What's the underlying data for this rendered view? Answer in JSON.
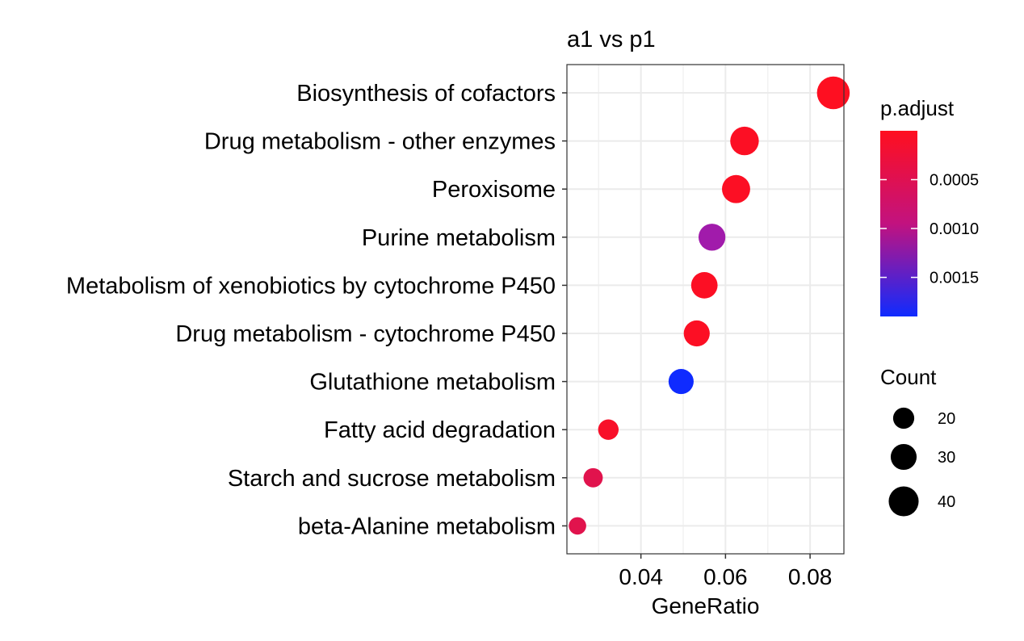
{
  "chart_data": {
    "type": "scatter",
    "title": "a1 vs p1",
    "xlabel": "GeneRatio",
    "ylabel": "",
    "xlim": [
      0.0225,
      0.088
    ],
    "xticks": [
      0.04,
      0.06,
      0.08
    ],
    "xtick_labels": [
      "0.04",
      "0.06",
      "0.08"
    ],
    "grid": true,
    "categories": [
      "Biosynthesis of cofactors",
      "Drug metabolism - other enzymes",
      "Peroxisome",
      "Purine metabolism",
      "Metabolism of xenobiotics by cytochrome P450",
      "Drug metabolism - cytochrome P450",
      "Glutathione metabolism",
      "Fatty acid degradation",
      "Starch and sucrose metabolism",
      "beta-Alanine metabolism"
    ],
    "points": [
      {
        "category": "Biosynthesis of cofactors",
        "gene_ratio": 0.0855,
        "count": 46,
        "p_adjust": 2e-05
      },
      {
        "category": "Drug metabolism - other enzymes",
        "gene_ratio": 0.0645,
        "count": 35,
        "p_adjust": 5e-05
      },
      {
        "category": "Peroxisome",
        "gene_ratio": 0.0625,
        "count": 34,
        "p_adjust": 5e-05
      },
      {
        "category": "Purine metabolism",
        "gene_ratio": 0.0568,
        "count": 31,
        "p_adjust": 0.00135
      },
      {
        "category": "Metabolism of xenobiotics by cytochrome P450",
        "gene_ratio": 0.055,
        "count": 30,
        "p_adjust": 5e-05
      },
      {
        "category": "Drug metabolism - cytochrome P450",
        "gene_ratio": 0.0532,
        "count": 29,
        "p_adjust": 5e-05
      },
      {
        "category": "Glutathione metabolism",
        "gene_ratio": 0.0495,
        "count": 27,
        "p_adjust": 0.0019
      },
      {
        "category": "Fatty acid degradation",
        "gene_ratio": 0.0323,
        "count": 18,
        "p_adjust": 0.0001
      },
      {
        "category": "Starch and sucrose metabolism",
        "gene_ratio": 0.0287,
        "count": 16,
        "p_adjust": 0.00045
      },
      {
        "category": "beta-Alanine metabolism",
        "gene_ratio": 0.025,
        "count": 13,
        "p_adjust": 0.00045
      }
    ],
    "color_scale": {
      "title": "p.adjust",
      "domain": [
        0.0,
        0.0019
      ],
      "low_color": "#ff0f1f",
      "high_color": "#0f2bff",
      "mid_color": "#a61aa8",
      "ticks": [
        0.0005,
        0.001,
        0.0015
      ],
      "tick_labels": [
        "0.0005",
        "0.0010",
        "0.0015"
      ]
    },
    "size_scale": {
      "title": "Count",
      "breaks": [
        20,
        30,
        40
      ],
      "break_labels": [
        "20",
        "30",
        "40"
      ],
      "legend_color": "#000000"
    }
  }
}
